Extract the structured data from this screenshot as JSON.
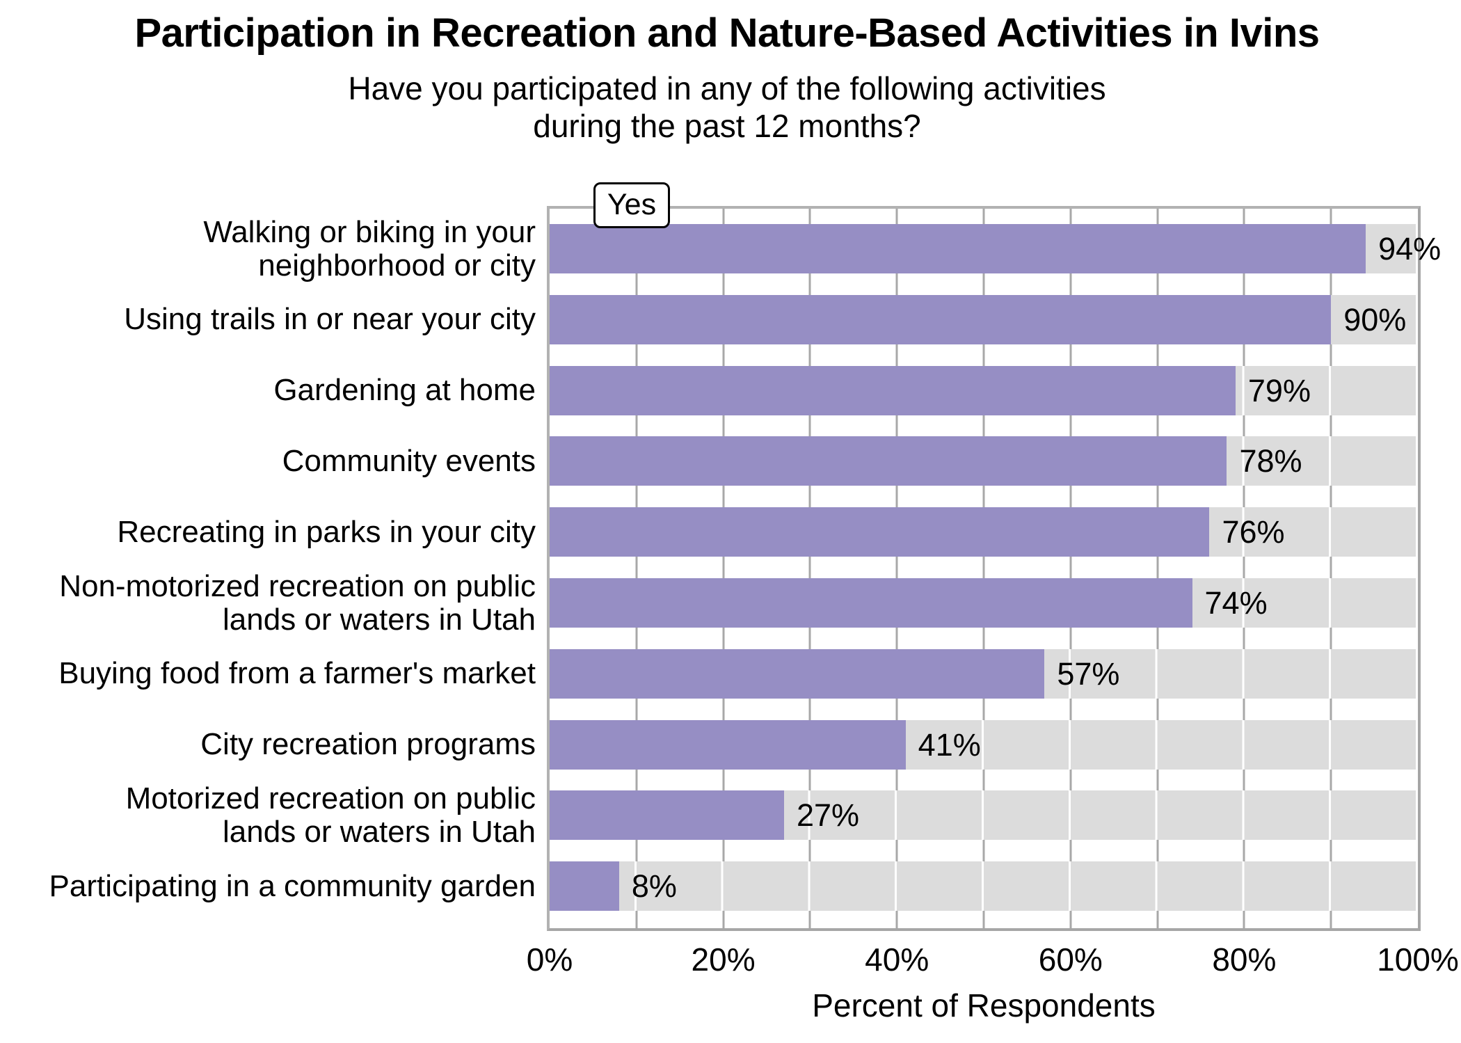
{
  "title": "Participation in Recreation and Nature-Based Activities in Ivins",
  "subtitle_line1": "Have you participated in any of the following activities",
  "subtitle_line2": "during the past 12 months?",
  "legend": {
    "label": "Yes"
  },
  "axis": {
    "x_label": "Percent of Respondents",
    "x_ticks": [
      "0%",
      "20%",
      "40%",
      "60%",
      "80%",
      "100%"
    ]
  },
  "colors": {
    "bar": "#968EC4",
    "track": "#DCDCDC",
    "panel_border": "#B2B2B2",
    "gap_gridline": "#A8A8A8",
    "track_gridline": "#FFFFFF",
    "text": "#000000"
  },
  "chart_data": {
    "type": "bar",
    "orientation": "horizontal",
    "title": "Participation in Recreation and Nature-Based Activities in Ivins",
    "subtitle": "Have you participated in any of the following activities during the past 12 months?",
    "series_label": "Yes",
    "categories": [
      "Walking or biking in your neighborhood or city",
      "Using trails in or near your city",
      "Gardening at home",
      "Community events",
      "Recreating in parks in your city",
      "Non-motorized recreation on public lands or waters in Utah",
      "Buying food from a farmer's market",
      "City recreation programs",
      "Motorized recreation on public lands or waters in Utah",
      "Participating in a community garden"
    ],
    "category_lines": [
      [
        "Walking or biking in your",
        "neighborhood or city"
      ],
      [
        "Using trails in or near your city"
      ],
      [
        "Gardening at home"
      ],
      [
        "Community events"
      ],
      [
        "Recreating in parks in your city"
      ],
      [
        "Non-motorized recreation on public",
        "lands or waters in Utah"
      ],
      [
        "Buying food from a farmer's market"
      ],
      [
        "City recreation programs"
      ],
      [
        "Motorized recreation on public",
        "lands or waters in Utah"
      ],
      [
        "Participating in a community garden"
      ]
    ],
    "values": [
      94,
      90,
      79,
      78,
      76,
      74,
      57,
      41,
      27,
      8
    ],
    "value_labels": [
      "94%",
      "90%",
      "79%",
      "78%",
      "76%",
      "74%",
      "57%",
      "41%",
      "27%",
      "8%"
    ],
    "unit": "%",
    "xlabel": "Percent of Respondents",
    "xlim": [
      0,
      100
    ],
    "x_tick_step": 20,
    "gridline_step": 10,
    "grid": true,
    "legend_position": "top-left-inside"
  }
}
